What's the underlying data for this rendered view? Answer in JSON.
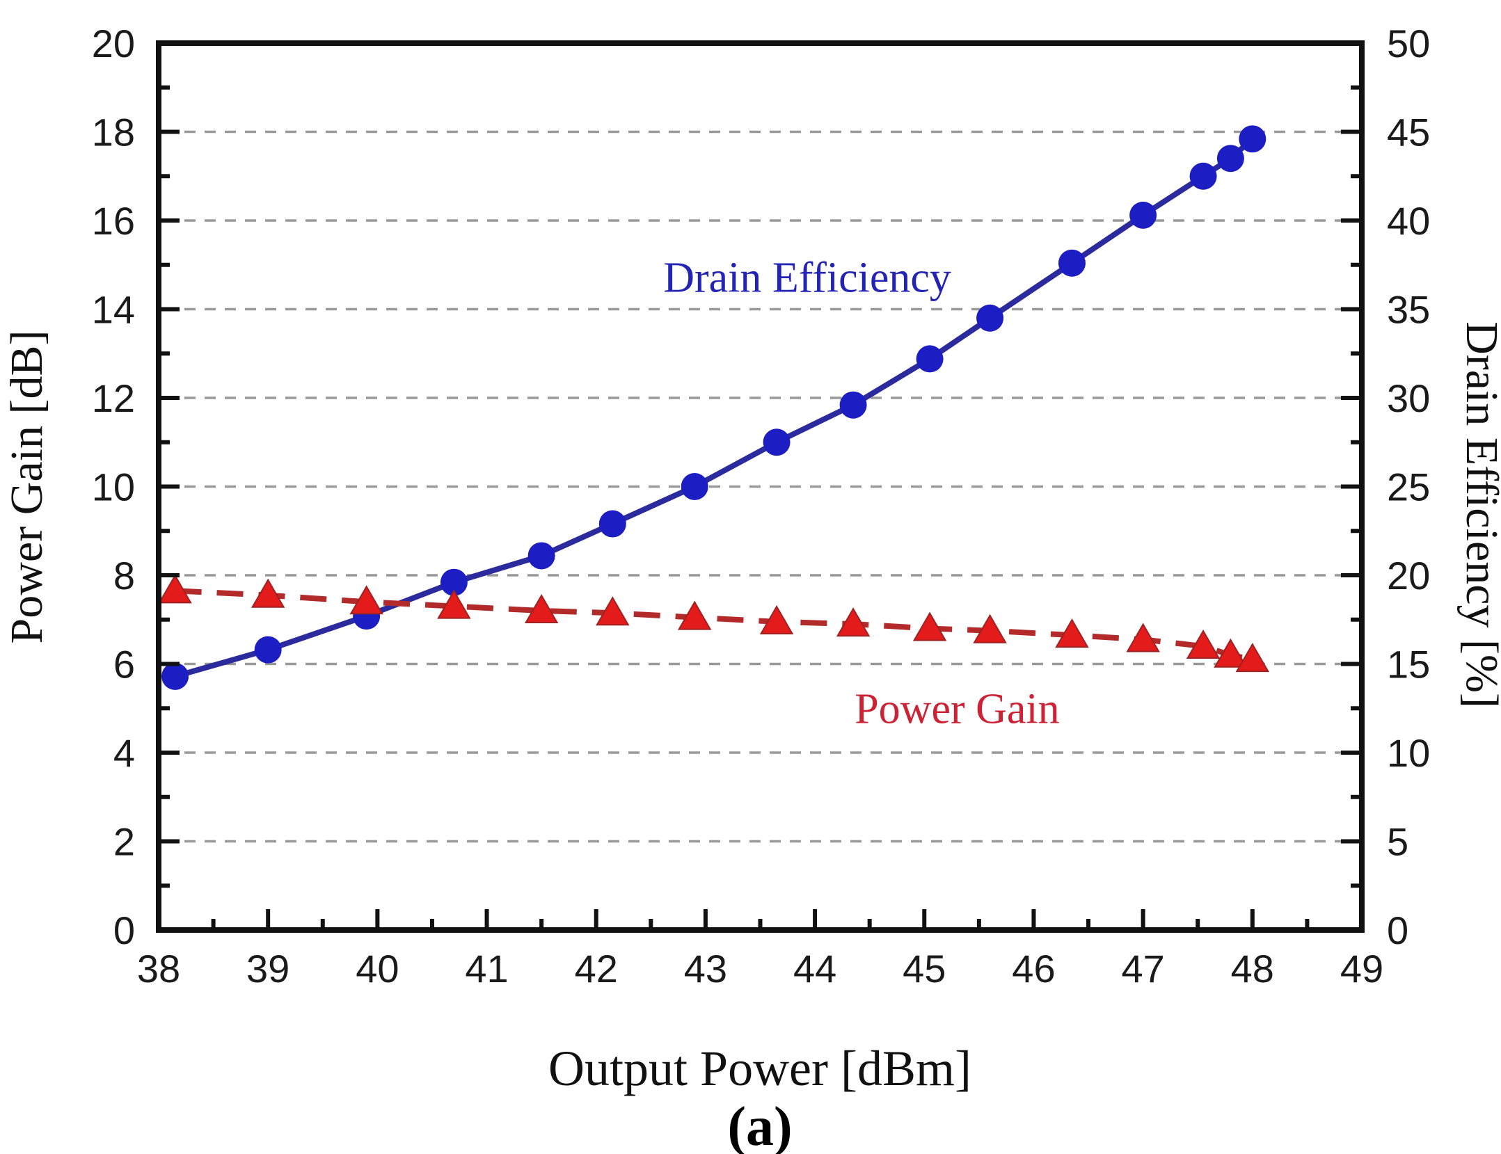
{
  "caption": "(a)",
  "chart_data": {
    "type": "line",
    "title": "",
    "xlabel": "Output Power [dBm]",
    "grid": {
      "style": "dashed",
      "color": "#9a9a9a",
      "at_left_axis_values": [
        2,
        4,
        6,
        8,
        10,
        12,
        14,
        16,
        18
      ]
    },
    "x_axis": {
      "range": [
        38,
        49
      ],
      "major_ticks": [
        38,
        39,
        40,
        41,
        42,
        43,
        44,
        45,
        46,
        47,
        48,
        49
      ],
      "tick_labels": [
        "38",
        "39",
        "40",
        "41",
        "42",
        "43",
        "44",
        "45",
        "46",
        "47",
        "48",
        "49"
      ],
      "minor_ticks": [
        38.5,
        39.5,
        40.5,
        41.5,
        42.5,
        43.5,
        44.5,
        45.5,
        46.5,
        47.5,
        48.5
      ]
    },
    "left_axis": {
      "label": "Power Gain [dB]",
      "range": [
        0,
        20
      ],
      "major_ticks": [
        0,
        2,
        4,
        6,
        8,
        10,
        12,
        14,
        16,
        18,
        20
      ],
      "tick_labels": [
        "0",
        "2",
        "4",
        "6",
        "8",
        "10",
        "12",
        "14",
        "16",
        "18",
        "20"
      ],
      "minor_ticks": [
        1,
        3,
        5,
        7,
        9,
        11,
        13,
        15,
        17,
        19
      ]
    },
    "right_axis": {
      "label": "Drain Efficiency [%]",
      "range": [
        0,
        50
      ],
      "major_ticks": [
        0,
        5,
        10,
        15,
        20,
        25,
        30,
        35,
        40,
        45,
        50
      ],
      "tick_labels": [
        "0",
        "5",
        "10",
        "15",
        "20",
        "25",
        "30",
        "35",
        "40",
        "45",
        "50"
      ],
      "minor_ticks": [
        2.5,
        7.5,
        12.5,
        17.5,
        22.5,
        27.5,
        32.5,
        37.5,
        42.5,
        47.5
      ]
    },
    "series": [
      {
        "name": "Drain Efficiency",
        "axis": "right",
        "marker": "circle",
        "marker_color": "#1d1dc4",
        "line_color": "#2b2b9e",
        "line_style": "solid",
        "x": [
          38.15,
          39.0,
          39.9,
          40.7,
          41.5,
          42.15,
          42.9,
          43.65,
          44.35,
          45.05,
          45.6,
          46.35,
          47.0,
          47.55,
          47.8,
          48.0
        ],
        "values": [
          14.3,
          15.8,
          17.7,
          19.6,
          21.1,
          22.9,
          25.0,
          27.5,
          29.6,
          32.2,
          34.5,
          37.6,
          40.3,
          42.5,
          43.5,
          44.6
        ]
      },
      {
        "name": "Power Gain",
        "axis": "left",
        "marker": "triangle",
        "marker_color": "#e31b1b",
        "line_color": "#b22a2a",
        "line_style": "dashed",
        "x": [
          38.15,
          39.0,
          39.9,
          40.7,
          41.5,
          42.15,
          42.9,
          43.65,
          44.35,
          45.05,
          45.6,
          46.35,
          47.0,
          47.55,
          47.8,
          48.0
        ],
        "values": [
          7.65,
          7.55,
          7.4,
          7.3,
          7.2,
          7.15,
          7.05,
          6.95,
          6.9,
          6.8,
          6.75,
          6.65,
          6.55,
          6.4,
          6.2,
          6.1
        ]
      }
    ],
    "annotations": [
      {
        "text": "Drain Efficiency",
        "color": "#2424b4",
        "x": 43.93,
        "y": 36.8,
        "axis": "right"
      },
      {
        "text": "Power Gain",
        "color": "#cc2233",
        "x": 45.3,
        "y": 5.0,
        "axis": "left"
      }
    ]
  }
}
